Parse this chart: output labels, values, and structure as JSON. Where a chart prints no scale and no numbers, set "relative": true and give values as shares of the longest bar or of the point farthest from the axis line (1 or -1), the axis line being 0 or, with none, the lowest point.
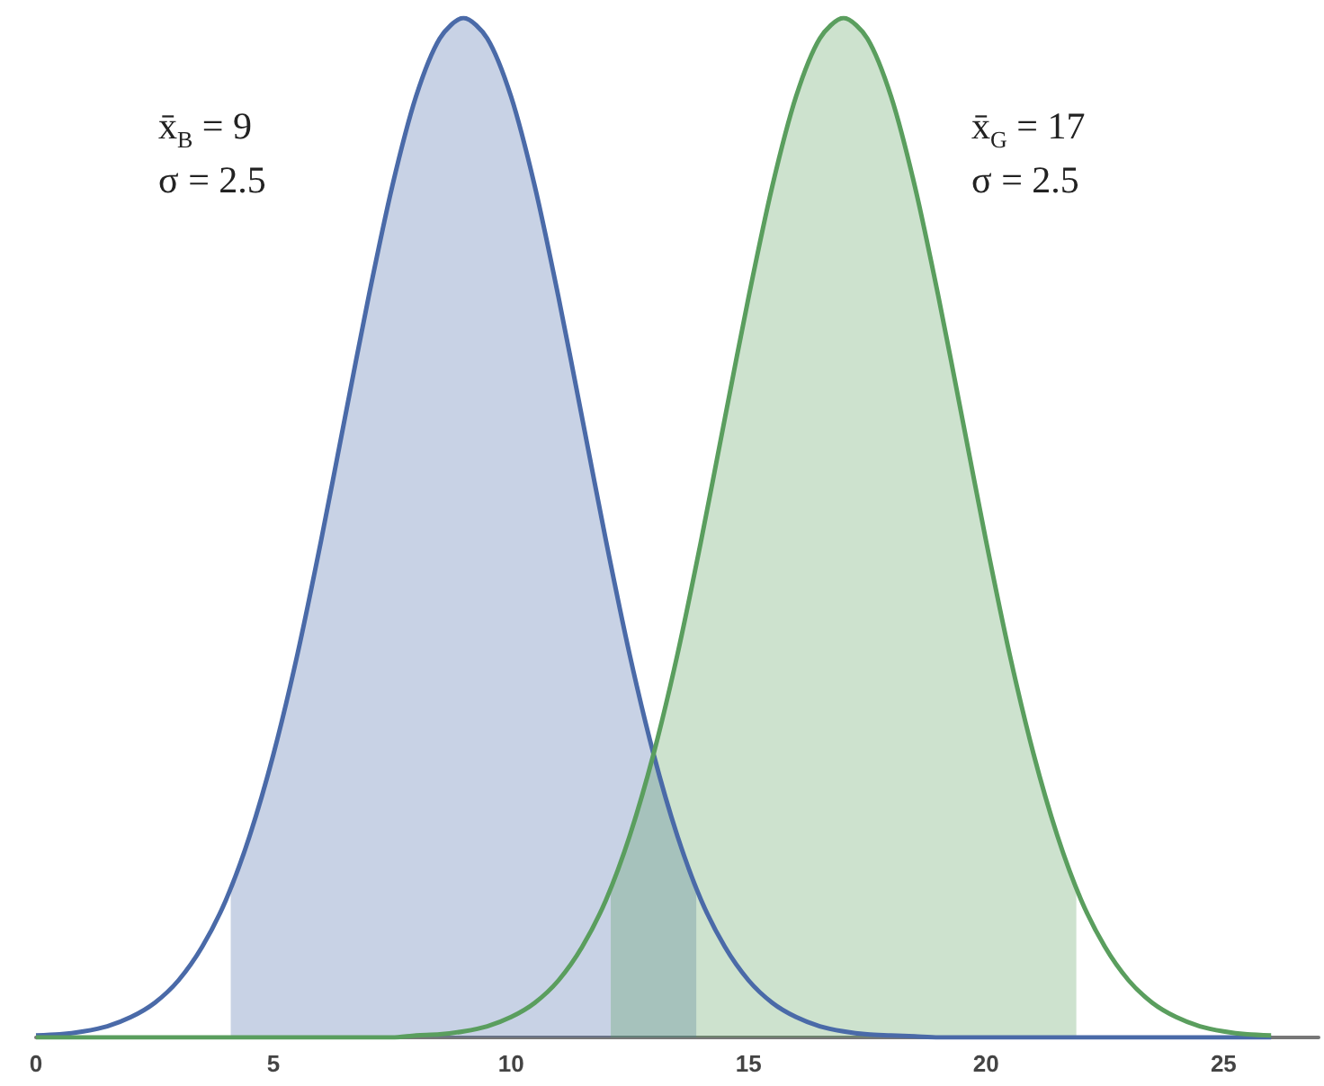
{
  "chart_data": {
    "type": "line",
    "relative": true,
    "marker": "none",
    "grid": false,
    "xlim": [
      0,
      27
    ],
    "xticks": [
      0,
      5,
      10,
      15,
      20,
      25
    ],
    "annotations": [
      "x̄$_{B}$ = 9\nσ = 2.5",
      "x̄$_{G}$ = 17\nσ = 2.5"
    ],
    "series": [
      {
        "type": "area",
        "color": "#4a6aa8",
        "x": [
          4.1,
          4.5,
          5,
          5.5,
          6,
          6.5,
          7,
          7.5,
          8,
          8.5,
          9,
          9.5,
          10,
          10.5,
          11,
          11.5,
          12,
          12.5,
          13,
          13.5,
          13.9
        ],
        "values": [
          0.146,
          0.198,
          0.278,
          0.375,
          0.487,
          0.607,
          0.726,
          0.835,
          0.923,
          0.98,
          1,
          0.98,
          0.923,
          0.835,
          0.726,
          0.607,
          0.487,
          0.375,
          0.278,
          0.198,
          0.146
        ]
      },
      {
        "type": "area",
        "color": "#5a9e5e",
        "x": [
          12.1,
          12.5,
          13,
          13.5,
          14,
          14.5,
          15,
          15.5,
          16,
          16.5,
          17,
          17.5,
          18,
          18.5,
          19,
          19.5,
          20,
          20.5,
          21,
          21.5,
          21.9
        ],
        "values": [
          0.146,
          0.198,
          0.278,
          0.375,
          0.487,
          0.607,
          0.726,
          0.835,
          0.923,
          0.98,
          1,
          0.98,
          0.923,
          0.835,
          0.726,
          0.607,
          0.487,
          0.375,
          0.278,
          0.198,
          0.146
        ]
      },
      {
        "color": "#4a6aa8",
        "x": [
          0,
          0.5,
          1,
          1.5,
          2,
          2.5,
          3,
          3.5,
          4,
          4.5,
          5,
          5.5,
          6,
          6.5,
          7,
          7.5,
          8,
          8.5,
          9,
          9.5,
          10,
          10.5,
          11,
          11.5,
          12,
          12.5,
          13,
          13.5,
          14,
          14.5,
          15,
          15.5,
          16,
          16.5,
          17,
          17.5,
          18,
          18.5,
          19,
          19.5,
          20,
          20.5,
          21,
          21.5,
          22,
          22.5,
          23,
          23.5,
          24,
          24.5,
          25,
          25.5,
          26
        ],
        "values": [
          0.002,
          0.003,
          0.006,
          0.011,
          0.02,
          0.034,
          0.056,
          0.089,
          0.135,
          0.198,
          0.278,
          0.375,
          0.487,
          0.607,
          0.726,
          0.835,
          0.923,
          0.98,
          1,
          0.98,
          0.923,
          0.835,
          0.726,
          0.607,
          0.487,
          0.375,
          0.278,
          0.198,
          0.135,
          0.089,
          0.056,
          0.034,
          0.02,
          0.011,
          0.006,
          0.003,
          0.002,
          0.001,
          0,
          0,
          0,
          0,
          0,
          0,
          0,
          0,
          0,
          0,
          0,
          0,
          0,
          0,
          0
        ]
      },
      {
        "color": "#5a9e5e",
        "x": [
          0,
          0.5,
          1,
          1.5,
          2,
          2.5,
          3,
          3.5,
          4,
          4.5,
          5,
          5.5,
          6,
          6.5,
          7,
          7.5,
          8,
          8.5,
          9,
          9.5,
          10,
          10.5,
          11,
          11.5,
          12,
          12.5,
          13,
          13.5,
          14,
          14.5,
          15,
          15.5,
          16,
          16.5,
          17,
          17.5,
          18,
          18.5,
          19,
          19.5,
          20,
          20.5,
          21,
          21.5,
          22,
          22.5,
          23,
          23.5,
          24,
          24.5,
          25,
          25.5,
          26
        ],
        "values": [
          0,
          0,
          0,
          0,
          0,
          0,
          0,
          0,
          0,
          0,
          0,
          0,
          0,
          0,
          0,
          0,
          0.002,
          0.003,
          0.006,
          0.011,
          0.02,
          0.034,
          0.056,
          0.089,
          0.135,
          0.198,
          0.278,
          0.375,
          0.487,
          0.607,
          0.726,
          0.835,
          0.923,
          0.98,
          1,
          0.98,
          0.923,
          0.835,
          0.726,
          0.607,
          0.487,
          0.375,
          0.278,
          0.198,
          0.135,
          0.089,
          0.056,
          0.034,
          0.02,
          0.011,
          0.006,
          0.003,
          0.002
        ]
      }
    ]
  }
}
